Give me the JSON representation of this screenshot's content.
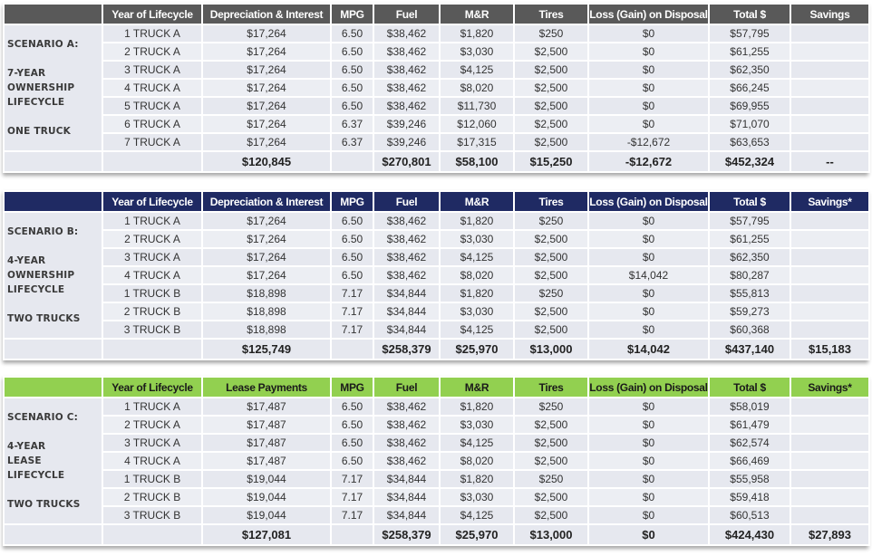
{
  "scenarios": [
    {
      "id": "A",
      "header_color": "#595959",
      "label_lines": [
        "SCENARIO A:",
        "",
        "7-YEAR",
        "OWNERSHIP",
        "LIFECYCLE",
        "",
        "ONE TRUCK"
      ],
      "columns": [
        "",
        "Year of Lifecycle",
        "Depreciation & Interest",
        "MPG",
        "Fuel",
        "M&R",
        "Tires",
        "Loss (Gain) on Disposal",
        "Total $",
        "Savings"
      ],
      "rows": [
        [
          "1 TRUCK A",
          "$17,264",
          "6.50",
          "$38,462",
          "$1,820",
          "$250",
          "$0",
          "$57,795",
          ""
        ],
        [
          "2 TRUCK A",
          "$17,264",
          "6.50",
          "$38,462",
          "$3,030",
          "$2,500",
          "$0",
          "$61,255",
          ""
        ],
        [
          "3 TRUCK A",
          "$17,264",
          "6.50",
          "$38,462",
          "$4,125",
          "$2,500",
          "$0",
          "$62,350",
          ""
        ],
        [
          "4 TRUCK A",
          "$17,264",
          "6.50",
          "$38,462",
          "$8,020",
          "$2,500",
          "$0",
          "$66,245",
          ""
        ],
        [
          "5 TRUCK A",
          "$17,264",
          "6.50",
          "$38,462",
          "$11,730",
          "$2,500",
          "$0",
          "$69,955",
          ""
        ],
        [
          "6 TRUCK A",
          "$17,264",
          "6.37",
          "$39,246",
          "$12,060",
          "$2,500",
          "$0",
          "$71,070",
          ""
        ],
        [
          "7 TRUCK A",
          "$17,264",
          "6.37",
          "$39,246",
          "$17,315",
          "$2,500",
          "-$12,672",
          "$63,653",
          ""
        ]
      ],
      "totals": [
        "",
        "$120,845",
        "",
        "$270,801",
        "$58,100",
        "$15,250",
        "-$12,672",
        "$452,324",
        "--"
      ]
    },
    {
      "id": "B",
      "header_color": "#1f2a63",
      "label_lines": [
        "SCENARIO B:",
        "",
        "4-YEAR",
        "OWNERSHIP",
        "LIFECYCLE",
        "",
        "TWO TRUCKS"
      ],
      "columns": [
        "",
        "Year of Lifecycle",
        "Depreciation & Interest",
        "MPG",
        "Fuel",
        "M&R",
        "Tires",
        "Loss (Gain) on Disposal",
        "Total $",
        "Savings*"
      ],
      "rows": [
        [
          "1 TRUCK A",
          "$17,264",
          "6.50",
          "$38,462",
          "$1,820",
          "$250",
          "$0",
          "$57,795",
          ""
        ],
        [
          "2 TRUCK A",
          "$17,264",
          "6.50",
          "$38,462",
          "$3,030",
          "$2,500",
          "$0",
          "$61,255",
          ""
        ],
        [
          "3 TRUCK A",
          "$17,264",
          "6.50",
          "$38,462",
          "$4,125",
          "$2,500",
          "$0",
          "$62,350",
          ""
        ],
        [
          "4 TRUCK A",
          "$17,264",
          "6.50",
          "$38,462",
          "$8,020",
          "$2,500",
          "$14,042",
          "$80,287",
          ""
        ],
        [
          "1 TRUCK B",
          "$18,898",
          "7.17",
          "$34,844",
          "$1,820",
          "$250",
          "$0",
          "$55,813",
          ""
        ],
        [
          "2 TRUCK B",
          "$18,898",
          "7.17",
          "$34,844",
          "$3,030",
          "$2,500",
          "$0",
          "$59,273",
          ""
        ],
        [
          "3 TRUCK B",
          "$18,898",
          "7.17",
          "$34,844",
          "$4,125",
          "$2,500",
          "$0",
          "$60,368",
          ""
        ]
      ],
      "totals": [
        "",
        "$125,749",
        "",
        "$258,379",
        "$25,970",
        "$13,000",
        "$14,042",
        "$437,140",
        "$15,183"
      ]
    },
    {
      "id": "C",
      "header_color": "#92d050",
      "label_lines": [
        "SCENARIO C:",
        "",
        "4-YEAR",
        "LEASE",
        "LIFECYCLE",
        "",
        "TWO TRUCKS"
      ],
      "columns": [
        "",
        "Year of Lifecycle",
        "Lease Payments",
        "MPG",
        "Fuel",
        "M&R",
        "Tires",
        "Loss (Gain) on Disposal",
        "Total $",
        "Savings*"
      ],
      "rows": [
        [
          "1 TRUCK A",
          "$17,487",
          "6.50",
          "$38,462",
          "$1,820",
          "$250",
          "$0",
          "$58,019",
          ""
        ],
        [
          "2 TRUCK A",
          "$17,487",
          "6.50",
          "$38,462",
          "$3,030",
          "$2,500",
          "$0",
          "$61,479",
          ""
        ],
        [
          "3 TRUCK A",
          "$17,487",
          "6.50",
          "$38,462",
          "$4,125",
          "$2,500",
          "$0",
          "$62,574",
          ""
        ],
        [
          "4 TRUCK A",
          "$17,487",
          "6.50",
          "$38,462",
          "$8,020",
          "$2,500",
          "$0",
          "$66,469",
          ""
        ],
        [
          "1 TRUCK B",
          "$19,044",
          "7.17",
          "$34,844",
          "$1,820",
          "$250",
          "$0",
          "$55,958",
          ""
        ],
        [
          "2 TRUCK B",
          "$19,044",
          "7.17",
          "$34,844",
          "$3,030",
          "$2,500",
          "$0",
          "$59,418",
          ""
        ],
        [
          "3 TRUCK B",
          "$19,044",
          "7.17",
          "$34,844",
          "$4,125",
          "$2,500",
          "$0",
          "$60,513",
          ""
        ]
      ],
      "totals": [
        "",
        "$127,081",
        "",
        "$258,379",
        "$25,970",
        "$13,000",
        "$0",
        "$424,430",
        "$27,893"
      ]
    }
  ]
}
